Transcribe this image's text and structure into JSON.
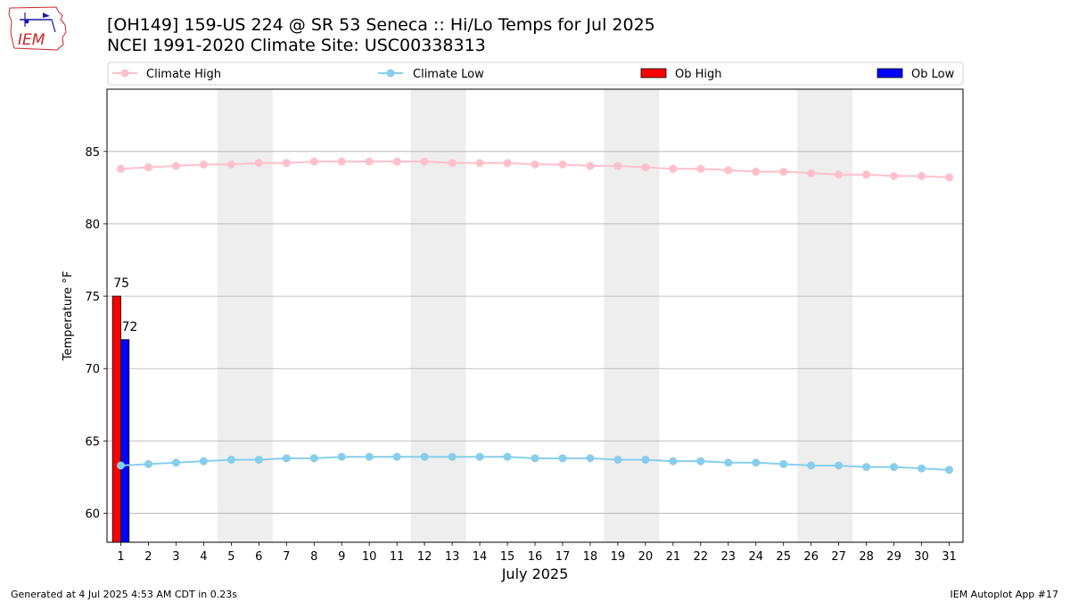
{
  "header": {
    "title_line1": "[OH149] 159-US 224 @ SR 53 Seneca :: Hi/Lo Temps for Jul 2025",
    "title_line2": "NCEI 1991-2020 Climate Site: USC00338313"
  },
  "logo": {
    "text": "IEM"
  },
  "footer": {
    "left": "Generated at 4 Jul 2025 4:53 AM CDT in 0.23s",
    "right": "IEM Autoplot App #17"
  },
  "colors": {
    "climate_high": "#ffc0cb",
    "climate_low": "#87ceeb",
    "ob_high": "#ff0000",
    "ob_low": "#0000ff",
    "weekend_shade": "#eeeeee",
    "grid": "#b0b0b0"
  },
  "chart_data": {
    "type": "bar",
    "xlabel": "July 2025",
    "ylabel": "Temperature °F",
    "xlim": [
      0.5,
      31.5
    ],
    "ylim": [
      58,
      89.3
    ],
    "yticks": [
      60,
      65,
      70,
      75,
      80,
      85
    ],
    "x": [
      1,
      2,
      3,
      4,
      5,
      6,
      7,
      8,
      9,
      10,
      11,
      12,
      13,
      14,
      15,
      16,
      17,
      18,
      19,
      20,
      21,
      22,
      23,
      24,
      25,
      26,
      27,
      28,
      29,
      30,
      31
    ],
    "grid": "horizontal",
    "legend": "top, horizontal",
    "shaded_weekends": [
      [
        5,
        6
      ],
      [
        12,
        13
      ],
      [
        19,
        20
      ],
      [
        26,
        27
      ]
    ],
    "series": [
      {
        "name": "Climate High",
        "kind": "line",
        "values": [
          83.8,
          83.9,
          84.0,
          84.1,
          84.1,
          84.2,
          84.2,
          84.3,
          84.3,
          84.3,
          84.3,
          84.3,
          84.2,
          84.2,
          84.2,
          84.1,
          84.1,
          84.0,
          84.0,
          83.9,
          83.8,
          83.8,
          83.7,
          83.6,
          83.6,
          83.5,
          83.4,
          83.4,
          83.3,
          83.3,
          83.2
        ]
      },
      {
        "name": "Climate Low",
        "kind": "line",
        "values": [
          63.3,
          63.4,
          63.5,
          63.6,
          63.7,
          63.7,
          63.8,
          63.8,
          63.9,
          63.9,
          63.9,
          63.9,
          63.9,
          63.9,
          63.9,
          63.8,
          63.8,
          63.8,
          63.7,
          63.7,
          63.6,
          63.6,
          63.5,
          63.5,
          63.4,
          63.3,
          63.3,
          63.2,
          63.2,
          63.1,
          63.0
        ]
      },
      {
        "name": "Ob High",
        "kind": "bar",
        "x": [
          1
        ],
        "values": [
          75
        ],
        "labels": [
          "75"
        ]
      },
      {
        "name": "Ob Low",
        "kind": "bar",
        "x": [
          1
        ],
        "values": [
          72
        ],
        "labels": [
          "72"
        ]
      }
    ]
  }
}
